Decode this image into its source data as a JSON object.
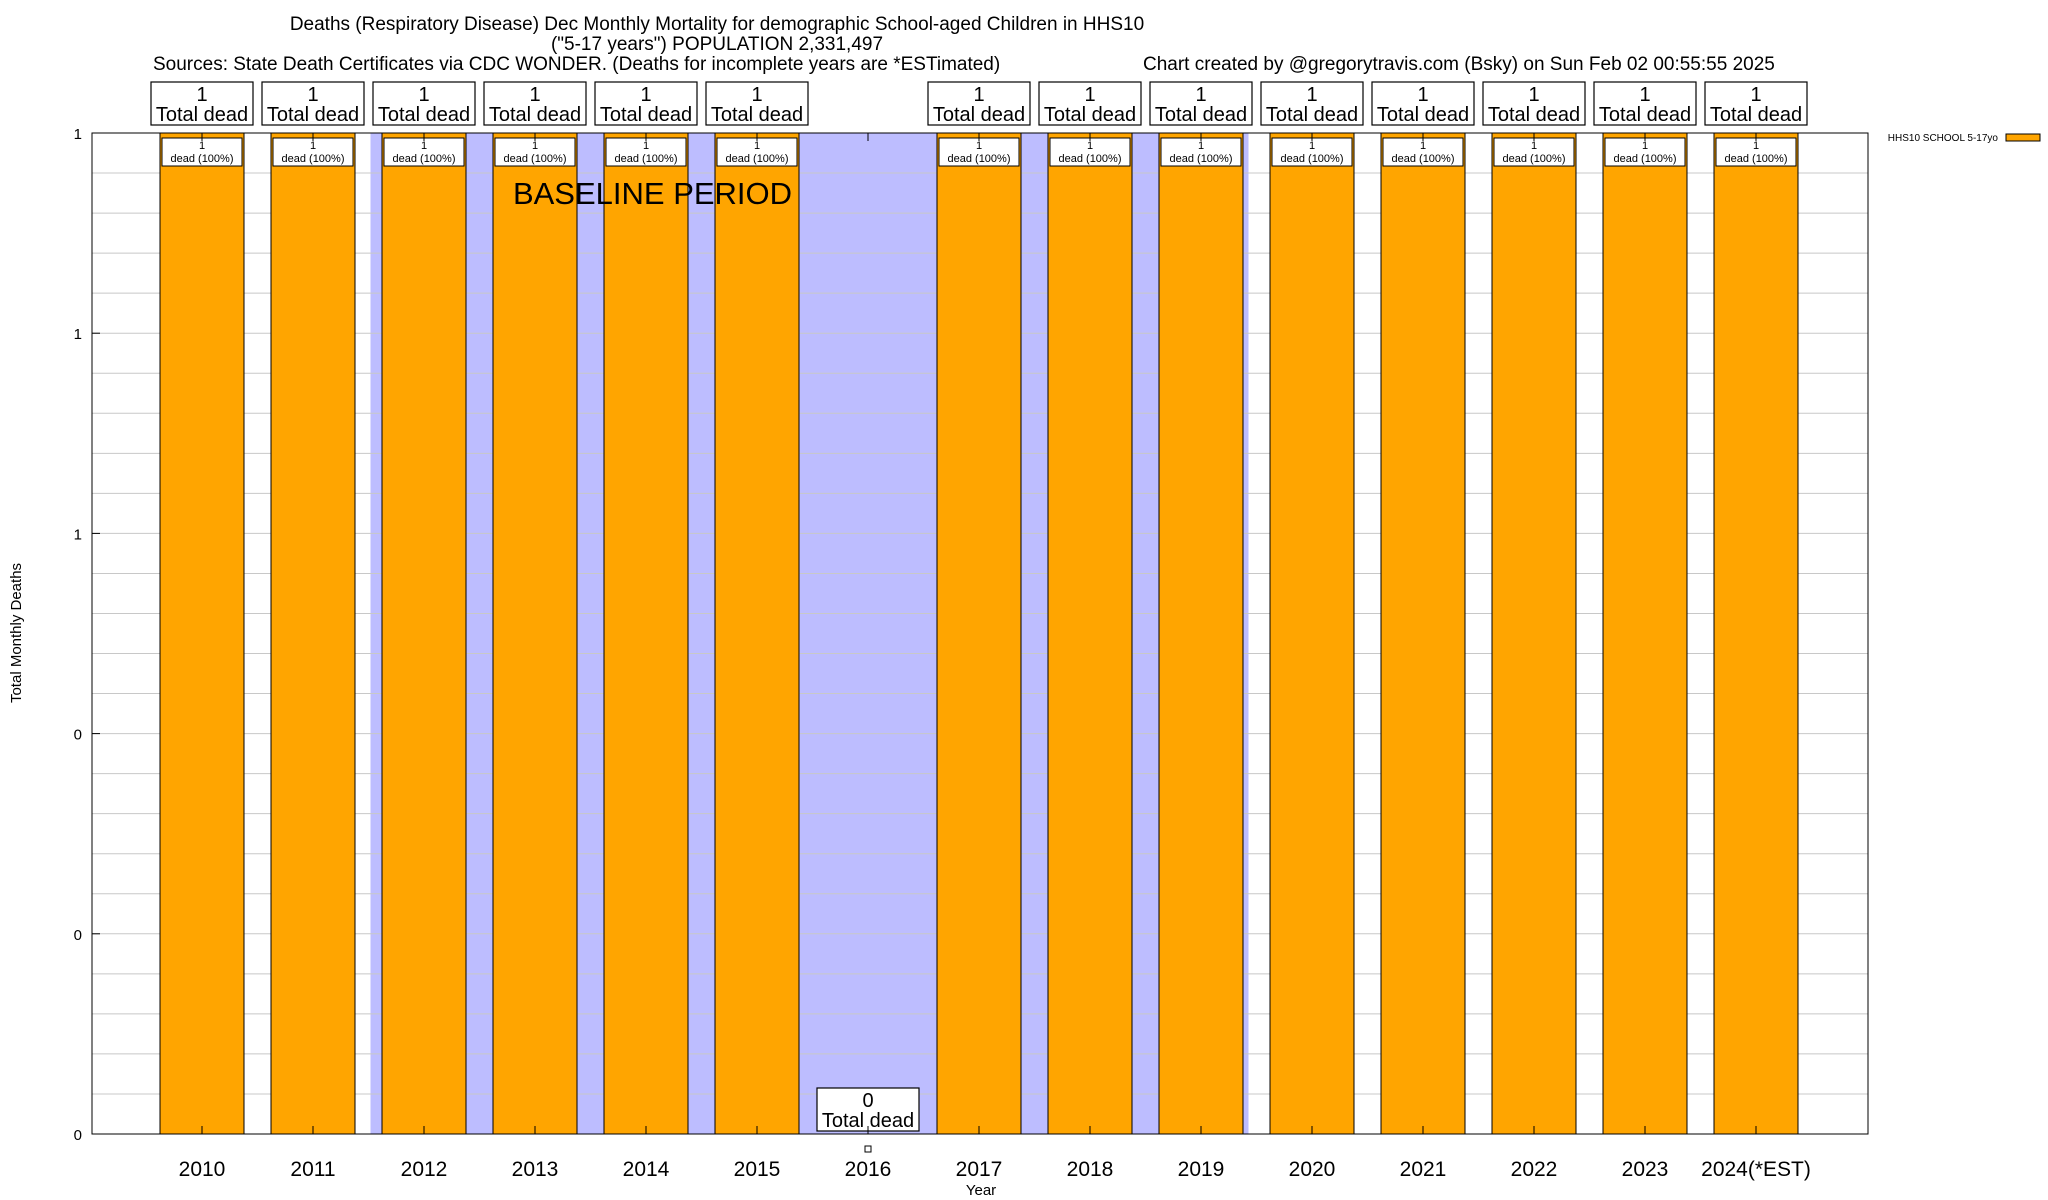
{
  "chart_data": {
    "type": "bar",
    "title": "Deaths (Respiratory Disease) Dec Monthly Mortality for demographic School-aged Children in HHS10",
    "subtitle": "(\"5-17 years\") POPULATION 2,331,497",
    "sources": "Sources: State Death Certificates via CDC WONDER. (Deaths for incomplete years are *ESTimated)",
    "credit": "Chart created by @gregorytravis.com (Bsky) on Sun Feb 02 00:55:55 2025",
    "xlabel": "Year",
    "ylabel": "Total Monthly Deaths",
    "ylim": [
      0,
      1
    ],
    "yticks": [
      0,
      0.2,
      0.4,
      0.6,
      0.8,
      1.0
    ],
    "ytick_labels": [
      "0",
      "0",
      "0",
      "1",
      "1",
      "1"
    ],
    "grid": true,
    "legend_position": "top-right",
    "baseline_label": "BASELINE PERIOD",
    "baseline_range": [
      "2012",
      "2019"
    ],
    "categories": [
      "2010",
      "2011",
      "2012",
      "2013",
      "2014",
      "2015",
      "2016",
      "2017",
      "2018",
      "2019",
      "2020",
      "2021",
      "2022",
      "2023",
      "2024(*EST)"
    ],
    "series": [
      {
        "name": "HHS10 SCHOOL 5-17yo",
        "color": "#FFA500",
        "values": [
          1,
          1,
          1,
          1,
          1,
          1,
          0,
          1,
          1,
          1,
          1,
          1,
          1,
          1,
          1
        ],
        "segment_labels": [
          "1",
          "1",
          "1",
          "1",
          "1",
          "1",
          "",
          "1",
          "1",
          "1",
          "1",
          "1",
          "1",
          "1",
          "1"
        ],
        "segment_sublabels": [
          "dead (100%)",
          "dead (100%)",
          "dead (100%)",
          "dead (100%)",
          "dead (100%)",
          "dead (100%)",
          "",
          "dead (100%)",
          "dead (100%)",
          "dead (100%)",
          "dead (100%)",
          "dead (100%)",
          "dead (100%)",
          "dead (100%)",
          "dead (100%)"
        ]
      }
    ],
    "totals": [
      "1",
      "1",
      "1",
      "1",
      "1",
      "1",
      "0",
      "1",
      "1",
      "1",
      "1",
      "1",
      "1",
      "1",
      "1"
    ],
    "total_suffix": "Total dead",
    "colors": {
      "bar": "#FFA500",
      "baseline": "#BDBDFF",
      "grid": "#C8C8C8"
    }
  }
}
